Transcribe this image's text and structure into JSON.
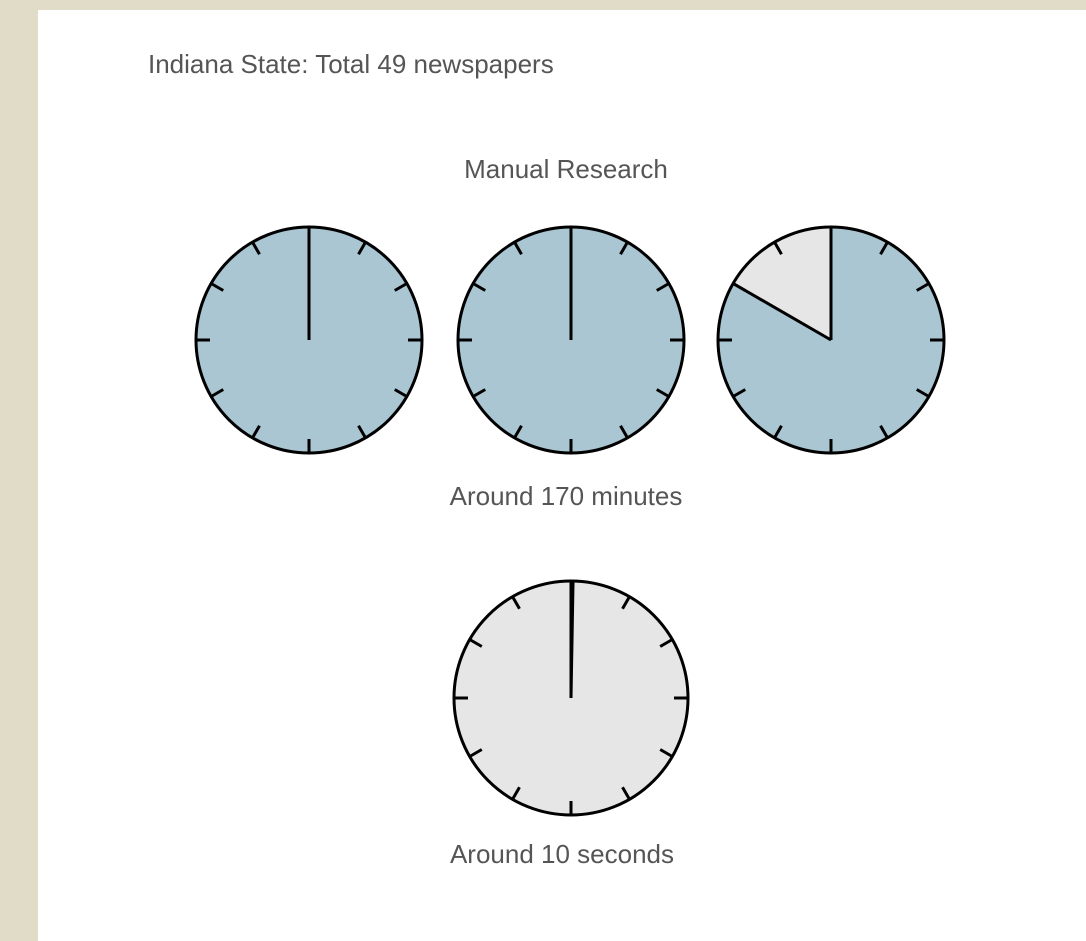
{
  "title": "Indiana State: Total 49 newspapers",
  "groups": [
    {
      "heading": "Manual Research",
      "full": 60,
      "clocks": [
        60,
        60,
        50
      ],
      "caption": "Around 170 minutes"
    },
    {
      "full": 3600,
      "clocks": [
        10
      ],
      "caption": "Around 10 seconds"
    }
  ]
}
